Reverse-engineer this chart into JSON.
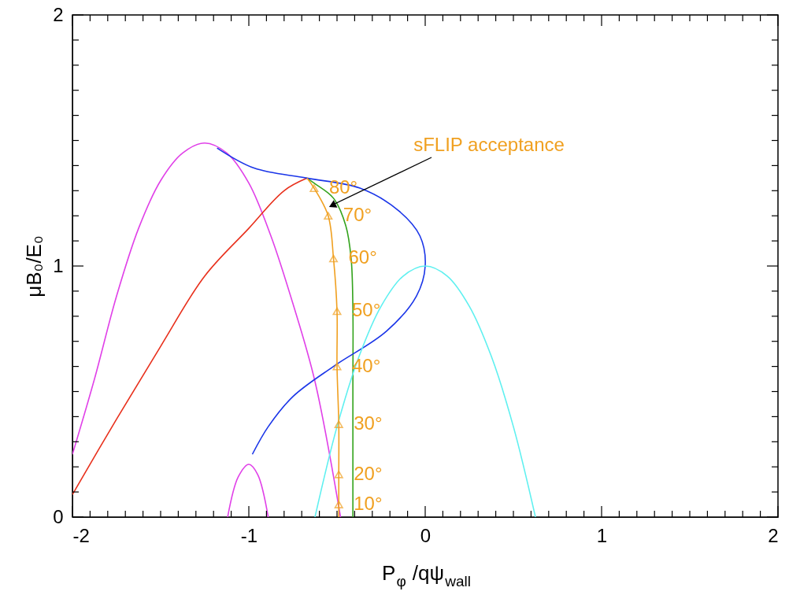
{
  "chart_data": {
    "type": "line",
    "xlabel": "P$_{φ}$ /qψ$_{wall}$",
    "ylabel": "μB₀/E₀",
    "xlim": [
      -2,
      2
    ],
    "ylim": [
      0,
      2
    ],
    "xticks": [
      -2,
      {
        "value": -1.9,
        "label": null
      },
      {
        "value": -1.8,
        "label": null
      },
      {
        "value": -1.7,
        "label": null
      },
      {
        "value": -1.6,
        "label": null
      },
      {
        "value": -1.5,
        "label": null
      },
      {
        "value": -1.4,
        "label": null
      },
      {
        "value": -1.3,
        "label": null
      },
      {
        "value": -1.2,
        "label": null
      },
      {
        "value": -1.1,
        "label": null
      },
      -1,
      {
        "value": -0.9,
        "label": null
      },
      {
        "value": -0.8,
        "label": null
      },
      {
        "value": -0.7,
        "label": null
      },
      {
        "value": -0.6,
        "label": null
      },
      {
        "value": -0.5,
        "label": null
      },
      {
        "value": -0.4,
        "label": null
      },
      {
        "value": -0.3,
        "label": null
      },
      {
        "value": -0.2,
        "label": null
      },
      {
        "value": -0.1,
        "label": null
      },
      0,
      {
        "value": 0.1,
        "label": null
      },
      {
        "value": 0.2,
        "label": null
      },
      {
        "value": 0.3,
        "label": null
      },
      {
        "value": 0.4,
        "label": null
      },
      {
        "value": 0.5,
        "label": null
      },
      {
        "value": 0.6,
        "label": null
      },
      {
        "value": 0.7,
        "label": null
      },
      {
        "value": 0.8,
        "label": null
      },
      {
        "value": 0.9,
        "label": null
      },
      1,
      {
        "value": 1.1,
        "label": null
      },
      {
        "value": 1.2,
        "label": null
      },
      {
        "value": 1.3,
        "label": null
      },
      {
        "value": 1.4,
        "label": null
      },
      {
        "value": 1.5,
        "label": null
      },
      {
        "value": 1.6,
        "label": null
      },
      {
        "value": 1.7,
        "label": null
      },
      {
        "value": 1.8,
        "label": null
      },
      {
        "value": 1.9,
        "label": null
      },
      2
    ],
    "yticks": [
      0,
      {
        "value": 0.1,
        "label": null
      },
      {
        "value": 0.2,
        "label": null
      },
      {
        "value": 0.3,
        "label": null
      },
      {
        "value": 0.4,
        "label": null
      },
      {
        "value": 0.5,
        "label": null
      },
      {
        "value": 0.6,
        "label": null
      },
      {
        "value": 0.7,
        "label": null
      },
      {
        "value": 0.8,
        "label": null
      },
      {
        "value": 0.9,
        "label": null
      },
      1,
      {
        "value": 1.1,
        "label": null
      },
      {
        "value": 1.2,
        "label": null
      },
      {
        "value": 1.3,
        "label": null
      },
      {
        "value": 1.4,
        "label": null
      },
      {
        "value": 1.5,
        "label": null
      },
      {
        "value": 1.6,
        "label": null
      },
      {
        "value": 1.7,
        "label": null
      },
      {
        "value": 1.8,
        "label": null
      },
      {
        "value": 1.9,
        "label": null
      },
      2
    ],
    "grid": false,
    "marker": "none",
    "line_style": "solid",
    "series": [
      {
        "color": "#e040e8",
        "x": [
          -2,
          -1.875,
          -1.75,
          -1.625,
          -1.5,
          -1.375,
          -1.25,
          -1.125,
          -1.0,
          -0.875,
          -0.75,
          -0.625,
          -0.48
        ],
        "values": [
          0.25,
          0.55,
          0.88,
          1.15,
          1.34,
          1.45,
          1.49,
          1.45,
          1.33,
          1.12,
          0.85,
          0.54,
          0
        ]
      },
      {
        "color": "#e040e8",
        "x": [
          -1.12,
          -1.06,
          -1.0,
          -0.95,
          -0.89
        ],
        "values": [
          0,
          0.16,
          0.21,
          0.17,
          0
        ]
      },
      {
        "color": "#e8301c",
        "x": [
          -2,
          -1.75,
          -1.5,
          -1.25,
          -1.0,
          -0.8,
          -0.67
        ],
        "values": [
          0.09,
          0.39,
          0.68,
          0.96,
          1.15,
          1.3,
          1.35
        ]
      },
      {
        "color": "#33a31c",
        "x": [
          -0.67,
          -0.63,
          -0.52,
          -0.45,
          -0.42,
          -0.41,
          -0.41,
          -0.41
        ],
        "values": [
          1.35,
          1.33,
          1.27,
          1.16,
          1.03,
          0.83,
          0.51,
          0
        ]
      },
      {
        "color": "#1a35e8",
        "x": [
          -1.18,
          -0.97,
          -0.67,
          -0.37,
          -0.15,
          -0.03,
          0,
          -0.05,
          -0.22,
          -0.52,
          -0.75,
          -0.89,
          -0.98
        ],
        "values": [
          1.47,
          1.39,
          1.35,
          1.31,
          1.22,
          1.12,
          1.0,
          0.88,
          0.74,
          0.6,
          0.48,
          0.36,
          0.25
        ]
      },
      {
        "color": "#5ff0f0",
        "x": [
          -0.625,
          -0.5,
          -0.375,
          -0.25,
          -0.125,
          0,
          0.125,
          0.25,
          0.375,
          0.5,
          0.625
        ],
        "values": [
          0,
          0.36,
          0.64,
          0.84,
          0.96,
          1.0,
          0.96,
          0.84,
          0.64,
          0.36,
          0
        ]
      },
      {
        "color": "#f0a020",
        "x": [
          -0.67,
          -0.63,
          -0.55,
          -0.52,
          -0.5,
          -0.5,
          -0.49,
          -0.49,
          -0.49,
          -0.49
        ],
        "values": [
          1.35,
          1.31,
          1.2,
          1.03,
          0.82,
          0.6,
          0.37,
          0.17,
          0.05,
          0
        ]
      },
      {
        "type": "scatter",
        "marker": "triangle",
        "color": "#f0a020",
        "x": [
          -0.63,
          -0.55,
          -0.52,
          -0.5,
          -0.5,
          -0.49,
          -0.49,
          -0.49
        ],
        "values": [
          1.31,
          1.2,
          1.03,
          0.82,
          0.6,
          0.37,
          0.17,
          0.05
        ]
      }
    ],
    "annotations": [
      "sFLIP acceptance",
      {
        "text": "80°",
        "x": -0.63,
        "y": 1.31
      },
      {
        "text": "70°",
        "x": -0.55,
        "y": 1.2
      },
      {
        "text": "60°",
        "x": -0.52,
        "y": 1.03
      },
      {
        "text": "50°",
        "x": -0.5,
        "y": 0.82
      },
      {
        "text": "40°",
        "x": -0.5,
        "y": 0.6
      },
      {
        "text": "30°",
        "x": -0.49,
        "y": 0.37
      },
      {
        "text": "20°",
        "x": -0.49,
        "y": 0.17
      },
      {
        "text": "10°",
        "x": -0.49,
        "y": 0.05
      }
    ]
  }
}
